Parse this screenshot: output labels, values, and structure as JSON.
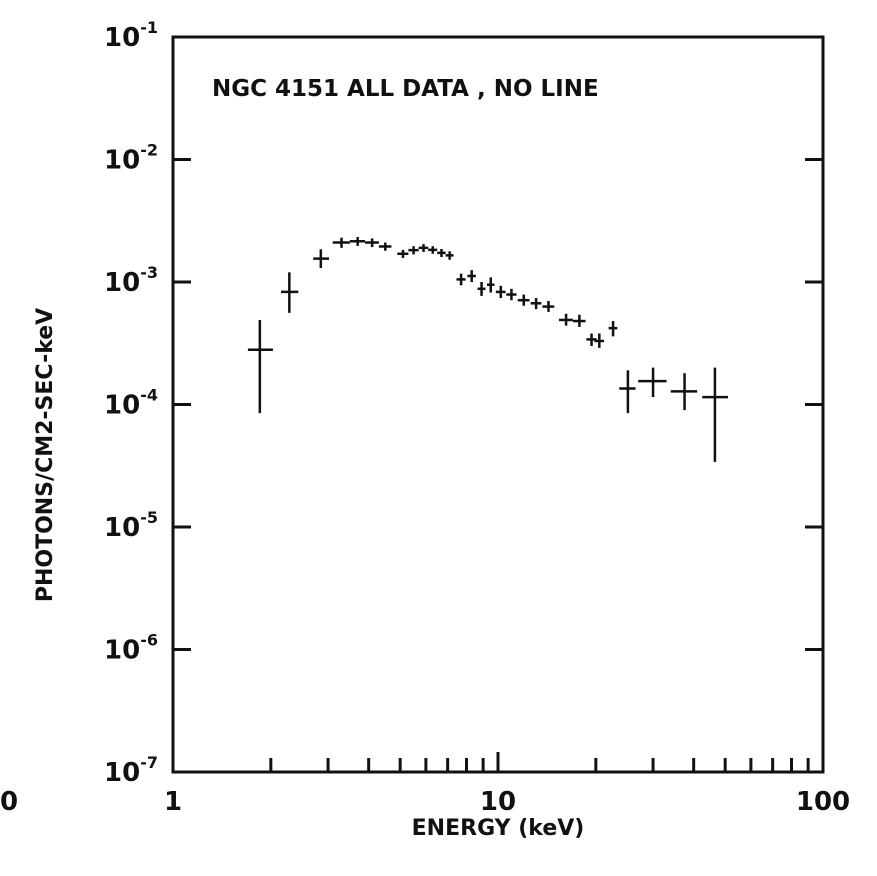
{
  "chart_data": {
    "type": "scatter",
    "title": "NGC 4151 ALL DATA , NO LINE",
    "xlabel": "ENERGY (keV)",
    "ylabel": "PHOTONS/CM2-SEC-keV",
    "xscale": "log",
    "yscale": "log",
    "xlim": [
      1,
      100
    ],
    "ylim": [
      1e-07,
      0.1
    ],
    "x_ticks": [
      {
        "value": 1,
        "label": "1"
      },
      {
        "value": 10,
        "label": "10"
      },
      {
        "value": 100,
        "label": "100"
      }
    ],
    "stray_left_label": "0",
    "y_ticks": [
      {
        "value": 0.1,
        "base": "10",
        "exp": "-1"
      },
      {
        "value": 0.01,
        "base": "10",
        "exp": "-2"
      },
      {
        "value": 0.001,
        "base": "10",
        "exp": "-3"
      },
      {
        "value": 0.0001,
        "base": "10",
        "exp": "-4"
      },
      {
        "value": 1e-05,
        "base": "10",
        "exp": "-5"
      },
      {
        "value": 1e-06,
        "base": "10",
        "exp": "-6"
      },
      {
        "value": 1e-07,
        "base": "10",
        "exp": "-7"
      }
    ],
    "grid": false,
    "legend": "none",
    "series": [
      {
        "error_bars": true,
        "points": [
          {
            "x": 1.85,
            "xlo": 1.7,
            "xhi": 2.03,
            "y": 0.00028,
            "ylo": 8.5e-05,
            "yhi": 0.00049
          },
          {
            "x": 2.28,
            "xlo": 2.15,
            "xhi": 2.43,
            "y": 0.00083,
            "ylo": 0.00056,
            "yhi": 0.0012
          },
          {
            "x": 2.85,
            "xlo": 2.7,
            "xhi": 3.02,
            "y": 0.00155,
            "ylo": 0.0013,
            "yhi": 0.00185
          },
          {
            "x": 3.3,
            "xlo": 3.1,
            "xhi": 3.5,
            "y": 0.0021,
            "ylo": 0.0019,
            "yhi": 0.0023
          },
          {
            "x": 3.7,
            "xlo": 3.5,
            "xhi": 3.9,
            "y": 0.00215,
            "ylo": 0.00197,
            "yhi": 0.00233
          },
          {
            "x": 4.1,
            "xlo": 3.9,
            "xhi": 4.3,
            "y": 0.0021,
            "ylo": 0.00193,
            "yhi": 0.00227
          },
          {
            "x": 4.5,
            "xlo": 4.3,
            "xhi": 4.7,
            "y": 0.00195,
            "ylo": 0.0018,
            "yhi": 0.0021
          },
          {
            "x": 5.1,
            "xlo": 4.9,
            "xhi": 5.3,
            "y": 0.0017,
            "ylo": 0.00157,
            "yhi": 0.00183
          },
          {
            "x": 5.5,
            "xlo": 5.3,
            "xhi": 5.7,
            "y": 0.00182,
            "ylo": 0.00168,
            "yhi": 0.00196
          },
          {
            "x": 5.9,
            "xlo": 5.7,
            "xhi": 6.1,
            "y": 0.0019,
            "ylo": 0.00176,
            "yhi": 0.00204
          },
          {
            "x": 6.3,
            "xlo": 6.1,
            "xhi": 6.5,
            "y": 0.00183,
            "ylo": 0.0017,
            "yhi": 0.00196
          },
          {
            "x": 6.7,
            "xlo": 6.5,
            "xhi": 6.9,
            "y": 0.00173,
            "ylo": 0.0016,
            "yhi": 0.00186
          },
          {
            "x": 7.1,
            "xlo": 6.9,
            "xhi": 7.3,
            "y": 0.00165,
            "ylo": 0.00152,
            "yhi": 0.00178
          },
          {
            "x": 7.7,
            "xlo": 7.45,
            "xhi": 7.95,
            "y": 0.00105,
            "ylo": 0.00094,
            "yhi": 0.00117
          },
          {
            "x": 8.3,
            "xlo": 8.05,
            "xhi": 8.55,
            "y": 0.00112,
            "ylo": 0.001,
            "yhi": 0.00125
          },
          {
            "x": 8.9,
            "xlo": 8.65,
            "xhi": 9.15,
            "y": 0.00088,
            "ylo": 0.00077,
            "yhi": 0.001
          },
          {
            "x": 9.5,
            "xlo": 9.25,
            "xhi": 9.75,
            "y": 0.00095,
            "ylo": 0.00082,
            "yhi": 0.00109
          },
          {
            "x": 10.2,
            "xlo": 9.85,
            "xhi": 10.55,
            "y": 0.00083,
            "ylo": 0.00074,
            "yhi": 0.00093
          },
          {
            "x": 11.0,
            "xlo": 10.6,
            "xhi": 11.4,
            "y": 0.00079,
            "ylo": 0.00071,
            "yhi": 0.00088
          },
          {
            "x": 12.0,
            "xlo": 11.5,
            "xhi": 12.5,
            "y": 0.00071,
            "ylo": 0.00064,
            "yhi": 0.00079
          },
          {
            "x": 13.1,
            "xlo": 12.6,
            "xhi": 13.6,
            "y": 0.00067,
            "ylo": 0.0006,
            "yhi": 0.00074
          },
          {
            "x": 14.3,
            "xlo": 13.7,
            "xhi": 14.9,
            "y": 0.00063,
            "ylo": 0.00057,
            "yhi": 0.0007
          },
          {
            "x": 16.2,
            "xlo": 15.4,
            "xhi": 17.0,
            "y": 0.00049,
            "ylo": 0.00044,
            "yhi": 0.00055
          },
          {
            "x": 17.8,
            "xlo": 17.0,
            "xhi": 18.6,
            "y": 0.00048,
            "ylo": 0.00043,
            "yhi": 0.00054
          },
          {
            "x": 19.4,
            "xlo": 18.7,
            "xhi": 20.1,
            "y": 0.00034,
            "ylo": 0.0003,
            "yhi": 0.00038
          },
          {
            "x": 20.5,
            "xlo": 19.8,
            "xhi": 21.2,
            "y": 0.00033,
            "ylo": 0.00029,
            "yhi": 0.00038
          },
          {
            "x": 22.6,
            "xlo": 21.9,
            "xhi": 23.3,
            "y": 0.00042,
            "ylo": 0.00036,
            "yhi": 0.00048
          },
          {
            "x": 25.1,
            "xlo": 23.6,
            "xhi": 26.5,
            "y": 0.000135,
            "ylo": 8.5e-05,
            "yhi": 0.00019
          },
          {
            "x": 30.0,
            "xlo": 27.0,
            "xhi": 33.0,
            "y": 0.000155,
            "ylo": 0.000115,
            "yhi": 0.0002
          },
          {
            "x": 37.5,
            "xlo": 34.0,
            "xhi": 41.0,
            "y": 0.000128,
            "ylo": 9e-05,
            "yhi": 0.00018
          },
          {
            "x": 46.5,
            "xlo": 42.5,
            "xhi": 51.0,
            "y": 0.000115,
            "ylo": 3.4e-05,
            "yhi": 0.0002
          }
        ]
      }
    ]
  }
}
